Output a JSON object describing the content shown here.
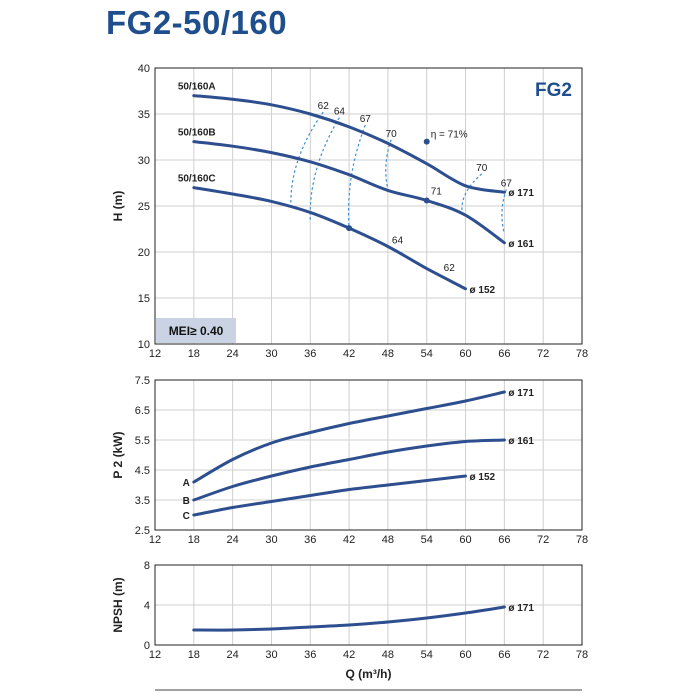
{
  "page_title": "FG2-50/160",
  "chart_data": [
    {
      "type": "line",
      "id": "head",
      "series_tag": "FG2",
      "badge": "MEI≥ 0.40",
      "ylabel": "H (m)",
      "xlim": [
        12,
        78
      ],
      "ylim": [
        10,
        40
      ],
      "x_ticks": [
        12,
        18,
        24,
        30,
        36,
        42,
        48,
        54,
        60,
        66,
        72,
        78
      ],
      "y_ticks": [
        10,
        15,
        20,
        25,
        30,
        35,
        40
      ],
      "grid": true,
      "series": [
        {
          "name": "50/160A",
          "end_label": "ø 171",
          "x": [
            18,
            24,
            30,
            36,
            42,
            48,
            54,
            60,
            66
          ],
          "y": [
            37.0,
            36.6,
            36.0,
            35.0,
            33.6,
            31.8,
            29.6,
            27.2,
            26.5
          ]
        },
        {
          "name": "50/160B",
          "end_label": "ø 161",
          "x": [
            18,
            24,
            30,
            36,
            42,
            48,
            54,
            60,
            66
          ],
          "y": [
            32.0,
            31.5,
            30.8,
            29.8,
            28.4,
            26.7,
            25.6,
            24.0,
            21.0
          ]
        },
        {
          "name": "50/160C",
          "end_label": "ø 152",
          "x": [
            18,
            24,
            30,
            36,
            42,
            48,
            54,
            60
          ],
          "y": [
            27.0,
            26.3,
            25.5,
            24.3,
            22.6,
            20.6,
            18.2,
            16.0
          ]
        }
      ],
      "efficiency_lines": [
        {
          "label": "62",
          "top": [
            38,
            35.2
          ],
          "bottom": [
            33,
            25.0
          ]
        },
        {
          "label": "64",
          "top": [
            40.5,
            34.6
          ],
          "bottom": [
            36,
            23.5
          ]
        },
        {
          "label": "67",
          "top": [
            44.5,
            33.8
          ],
          "bottom": [
            42,
            22.6
          ]
        },
        {
          "label": "70",
          "top": [
            48.5,
            32.2
          ],
          "bottom": [
            48,
            26.8
          ]
        },
        {
          "label": "70",
          "top": [
            62.5,
            28.5
          ],
          "bottom": [
            59.5,
            24.2
          ]
        },
        {
          "label": "67",
          "top": [
            66.3,
            26.8
          ],
          "bottom": [
            66,
            22.0
          ]
        }
      ],
      "annotations": [
        {
          "text": "η = 71%",
          "x": 54,
          "y": 32.0
        },
        {
          "text": "71",
          "x": 54,
          "y": 25.8
        },
        {
          "text": "64",
          "x": 48,
          "y": 20.5
        },
        {
          "text": "62",
          "x": 56,
          "y": 17.5
        }
      ],
      "markers": [
        {
          "x": 54,
          "y": 32.0
        },
        {
          "x": 54,
          "y": 25.6
        },
        {
          "x": 42,
          "y": 22.6
        }
      ]
    },
    {
      "type": "line",
      "id": "power",
      "ylabel": "P 2 (kW)",
      "xlim": [
        12,
        78
      ],
      "ylim": [
        2.5,
        7.5
      ],
      "x_ticks": [
        12,
        18,
        24,
        30,
        36,
        42,
        48,
        54,
        60,
        66,
        72,
        78
      ],
      "y_ticks": [
        2.5,
        3.5,
        4.5,
        5.5,
        6.5,
        7.5
      ],
      "y_tick_labels": [
        "2.5",
        "3.5",
        "4.5",
        "5.5",
        "6.5",
        "7.5"
      ],
      "grid": true,
      "series": [
        {
          "name": "A",
          "end_label": "ø 171",
          "x": [
            18,
            24,
            30,
            36,
            42,
            48,
            54,
            60,
            66
          ],
          "y": [
            4.1,
            4.85,
            5.4,
            5.75,
            6.05,
            6.3,
            6.55,
            6.8,
            7.1
          ]
        },
        {
          "name": "B",
          "end_label": "ø 161",
          "x": [
            18,
            24,
            30,
            36,
            42,
            48,
            54,
            60,
            66
          ],
          "y": [
            3.5,
            3.95,
            4.3,
            4.6,
            4.85,
            5.1,
            5.3,
            5.45,
            5.5
          ]
        },
        {
          "name": "C",
          "end_label": "ø 152",
          "x": [
            18,
            24,
            30,
            36,
            42,
            48,
            54,
            60
          ],
          "y": [
            3.0,
            3.25,
            3.45,
            3.65,
            3.85,
            4.0,
            4.15,
            4.3
          ]
        }
      ]
    },
    {
      "type": "line",
      "id": "npsh",
      "ylabel": "NPSH (m)",
      "xlabel": "Q (m³/h)",
      "xlim": [
        12,
        78
      ],
      "ylim": [
        0,
        8
      ],
      "x_ticks": [
        12,
        18,
        24,
        30,
        36,
        42,
        48,
        54,
        60,
        66,
        72,
        78
      ],
      "y_ticks": [
        0,
        4,
        8
      ],
      "grid": true,
      "series": [
        {
          "name": "",
          "end_label": "ø 171",
          "x": [
            18,
            24,
            30,
            36,
            42,
            48,
            54,
            60,
            66
          ],
          "y": [
            1.5,
            1.5,
            1.6,
            1.8,
            2.0,
            2.3,
            2.7,
            3.2,
            3.8
          ]
        }
      ]
    }
  ]
}
